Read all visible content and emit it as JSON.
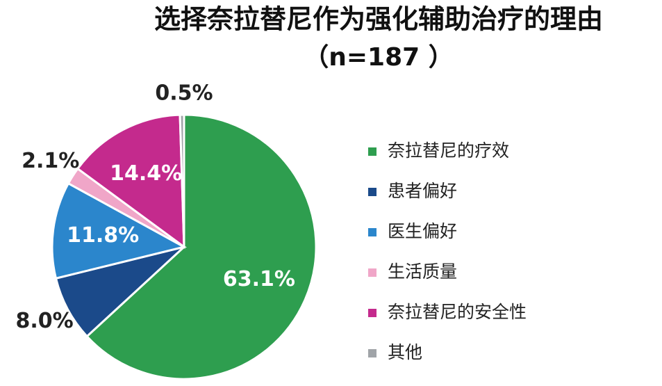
{
  "chart_data": {
    "type": "pie",
    "title": "选择奈拉替尼作为强化辅助治疗的理由",
    "subtitle": "（n=187 ）",
    "categories": [
      "奈拉替尼的疗效",
      "患者偏好",
      "医生偏好",
      "生活质量",
      "奈拉替尼的安全性",
      "其他"
    ],
    "values": [
      63.1,
      8.0,
      11.8,
      2.1,
      14.4,
      0.5
    ],
    "value_labels": [
      "63.1%",
      "8.0%",
      "11.8%",
      "2.1%",
      "14.4%",
      "0.5%"
    ],
    "colors": [
      "#2e9e4f",
      "#1b4a8a",
      "#2b86cc",
      "#f0a6c8",
      "#c42a8d",
      "#a0a4a8"
    ],
    "legend": "right"
  }
}
